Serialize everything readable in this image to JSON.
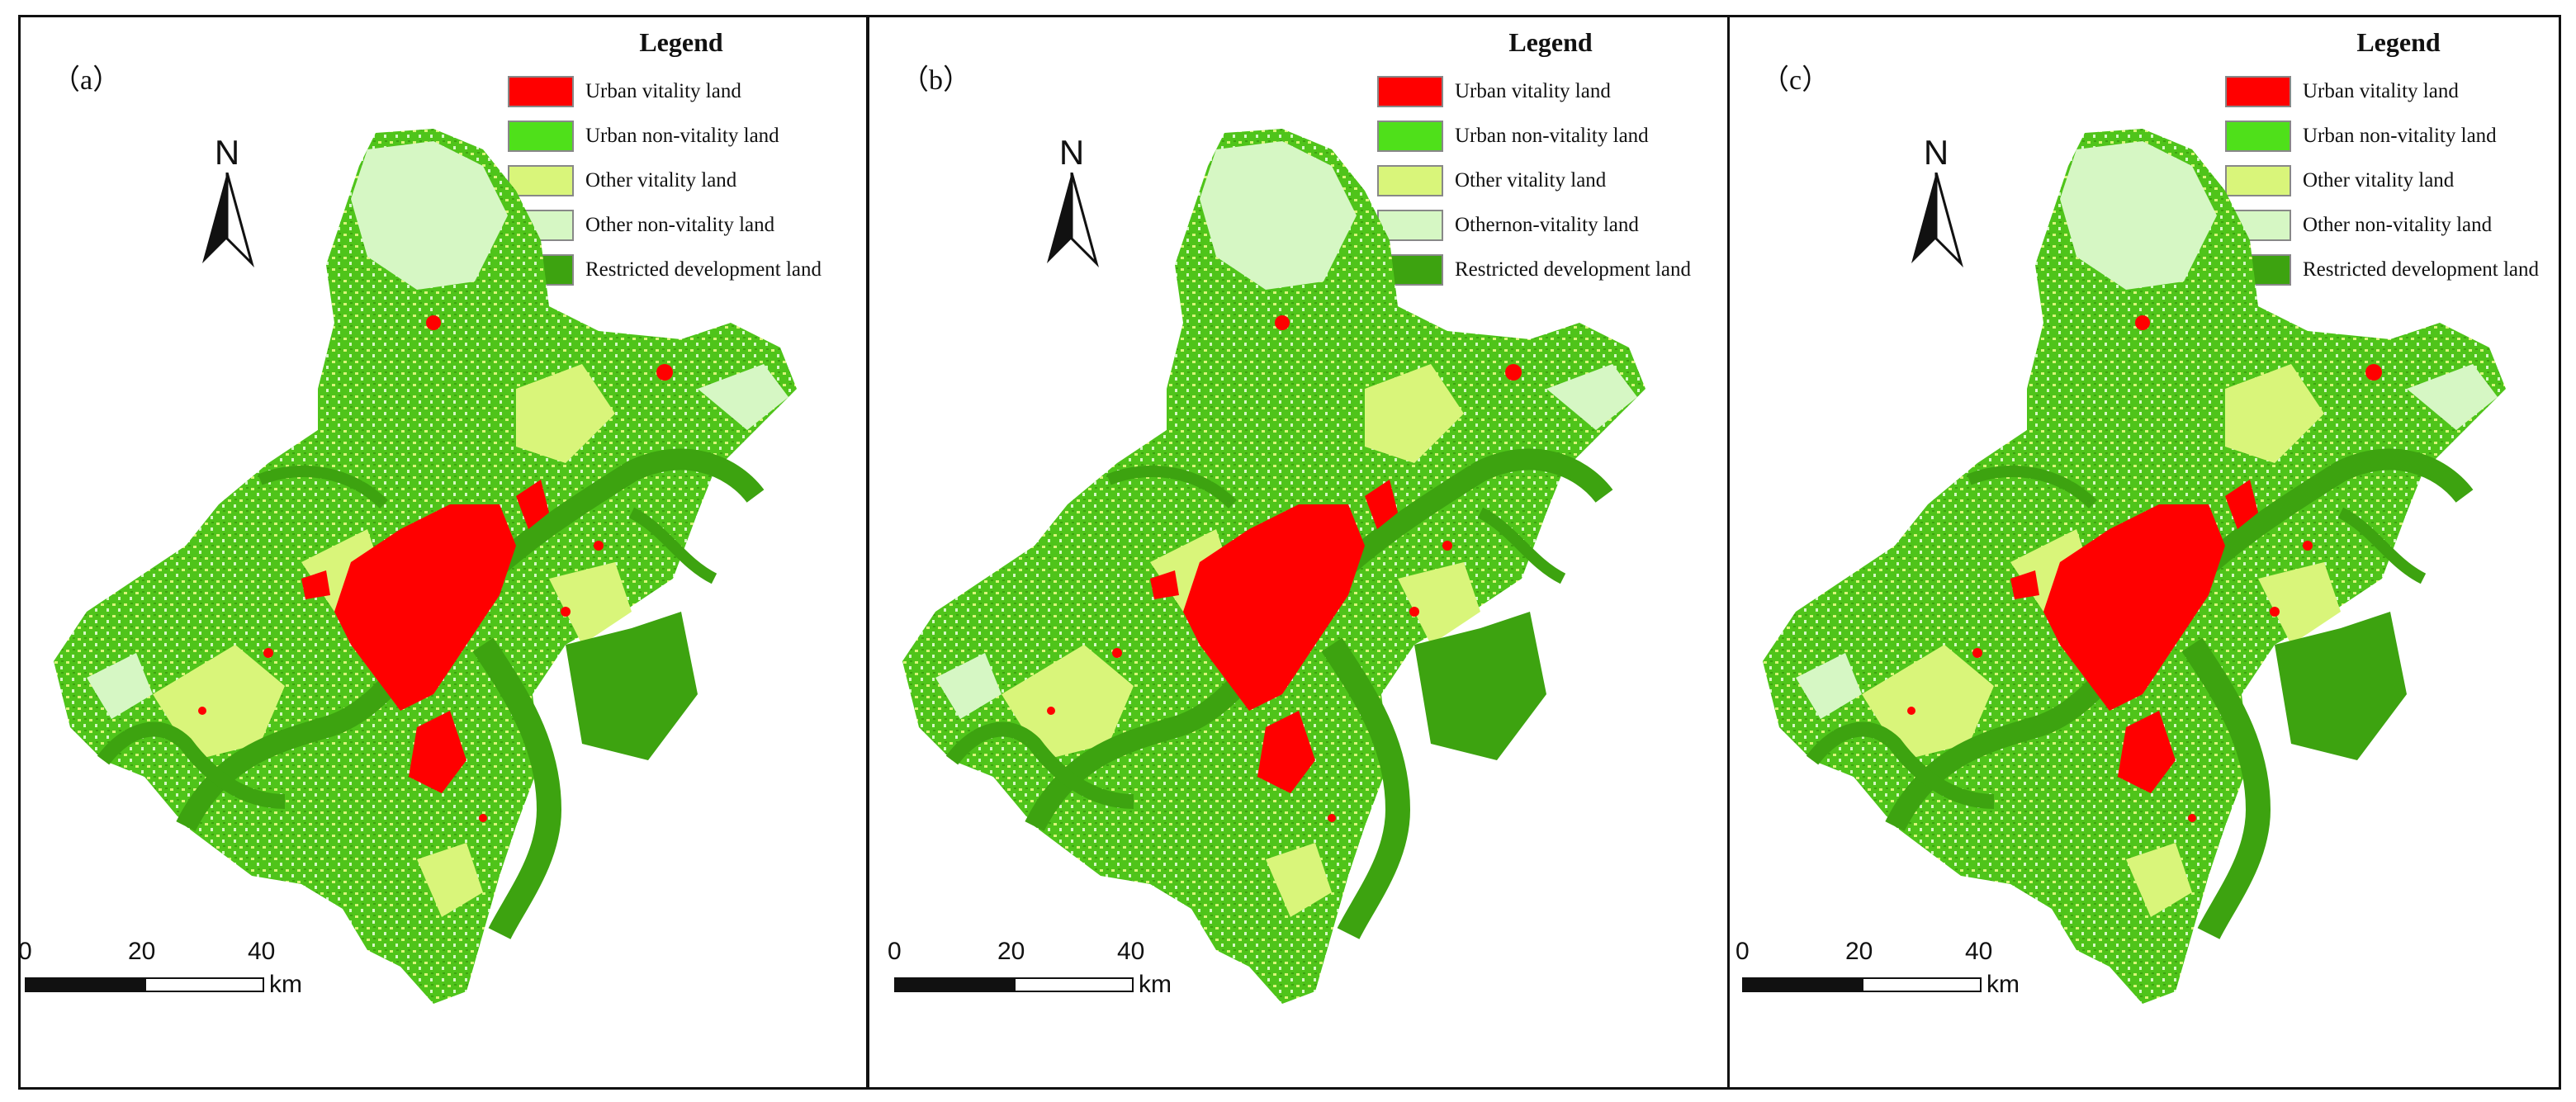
{
  "colors": {
    "urban_vitality": "#ff0000",
    "urban_non_vitality": "#4fe01a",
    "other_vitality": "#d9f57a",
    "other_non_vitality": "#d6f7c4",
    "restricted": "#3da310",
    "water": "#3da310"
  },
  "legend_title": "Legend",
  "north_label": "N",
  "scale": {
    "ticks": [
      "0",
      "20",
      "40"
    ],
    "unit": "km"
  },
  "panels": [
    {
      "label": "（a）",
      "legend": [
        "Urban vitality land",
        "Urban non-vitality land",
        "Other vitality land",
        "Other non-vitality land",
        "Restricted development land"
      ]
    },
    {
      "label": "（b）",
      "legend": [
        "Urban vitality land",
        "Urban non-vitality land",
        "Other vitality land",
        "Othernon-vitality land",
        "Restricted development land"
      ]
    },
    {
      "label": "（c）",
      "legend": [
        "Urban vitality land",
        "Urban non-vitality land",
        "Other vitality land",
        "Other non-vitality land",
        "Restricted development land"
      ]
    }
  ]
}
